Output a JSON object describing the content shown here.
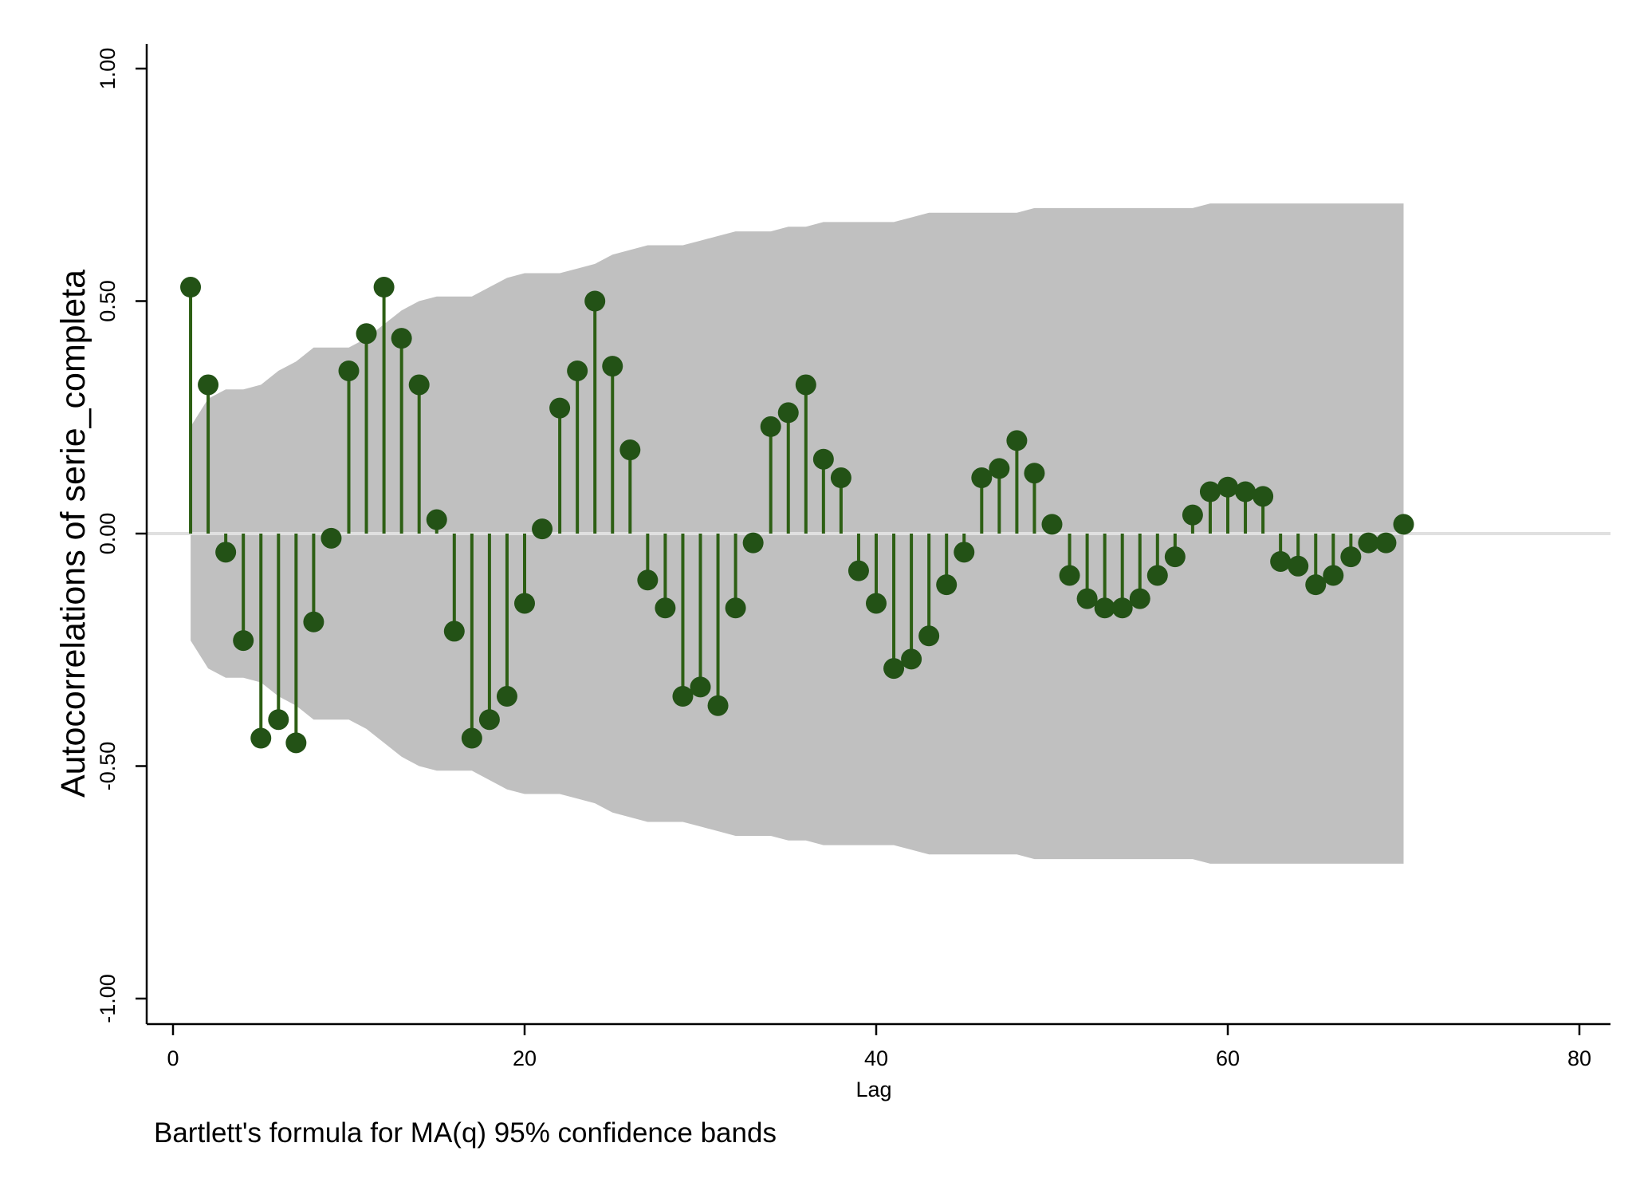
{
  "chart_data": {
    "type": "stem",
    "title": "",
    "xlabel": "Lag",
    "ylabel": "Autocorrelations of serie_completa",
    "note": "Bartlett's formula for MA(q) 95% confidence bands",
    "xlim": [
      0,
      80
    ],
    "ylim": [
      -1.0,
      1.0
    ],
    "x_ticks": [
      0,
      20,
      40,
      60,
      80
    ],
    "x_tick_labels": [
      "0",
      "20",
      "40",
      "60",
      "80"
    ],
    "y_ticks": [
      -1.0,
      -0.5,
      0.0,
      0.5,
      1.0
    ],
    "y_tick_labels": [
      "-1.00",
      "-0.50",
      "0.00",
      "0.50",
      "1.00"
    ],
    "grid": false,
    "legend": "none",
    "colors": {
      "stem": "#2d5f14",
      "marker": "#235216",
      "band": "#c0c0c0",
      "zero_line": "#e0e0e0",
      "axis": "#000000"
    },
    "lags": [
      1,
      2,
      3,
      4,
      5,
      6,
      7,
      8,
      9,
      10,
      11,
      12,
      13,
      14,
      15,
      16,
      17,
      18,
      19,
      20,
      21,
      22,
      23,
      24,
      25,
      26,
      27,
      28,
      29,
      30,
      31,
      32,
      33,
      34,
      35,
      36,
      37,
      38,
      39,
      40,
      41,
      42,
      43,
      44,
      45,
      46,
      47,
      48,
      49,
      50,
      51,
      52,
      53,
      54,
      55,
      56,
      57,
      58,
      59,
      60,
      61,
      62,
      63,
      64,
      65,
      66,
      67,
      68,
      69,
      70
    ],
    "acf": [
      0.53,
      0.32,
      -0.04,
      -0.23,
      -0.44,
      -0.4,
      -0.45,
      -0.19,
      -0.01,
      0.35,
      0.43,
      0.53,
      0.42,
      0.32,
      0.03,
      -0.21,
      -0.44,
      -0.4,
      -0.35,
      -0.15,
      0.01,
      0.27,
      0.35,
      0.5,
      0.36,
      0.18,
      -0.1,
      -0.16,
      -0.35,
      -0.33,
      -0.37,
      -0.16,
      -0.02,
      0.23,
      0.26,
      0.32,
      0.16,
      0.12,
      -0.08,
      -0.15,
      -0.29,
      -0.27,
      -0.22,
      -0.11,
      -0.04,
      0.12,
      0.14,
      0.2,
      0.13,
      0.02,
      -0.09,
      -0.14,
      -0.16,
      -0.16,
      -0.14,
      -0.09,
      -0.05,
      0.04,
      0.09,
      0.1,
      0.09,
      0.08,
      -0.06,
      -0.07,
      -0.11,
      -0.09,
      -0.05,
      -0.02,
      -0.02,
      0.02
    ],
    "conf_band": [
      0.23,
      0.29,
      0.31,
      0.31,
      0.32,
      0.35,
      0.37,
      0.4,
      0.4,
      0.4,
      0.42,
      0.45,
      0.48,
      0.5,
      0.51,
      0.51,
      0.51,
      0.53,
      0.55,
      0.56,
      0.56,
      0.56,
      0.57,
      0.58,
      0.6,
      0.61,
      0.62,
      0.62,
      0.62,
      0.63,
      0.64,
      0.65,
      0.65,
      0.65,
      0.66,
      0.66,
      0.67,
      0.67,
      0.67,
      0.67,
      0.67,
      0.68,
      0.69,
      0.69,
      0.69,
      0.69,
      0.69,
      0.69,
      0.7,
      0.7,
      0.7,
      0.7,
      0.7,
      0.7,
      0.7,
      0.7,
      0.7,
      0.7,
      0.71,
      0.71,
      0.71,
      0.71,
      0.71,
      0.71,
      0.71,
      0.71,
      0.71,
      0.71,
      0.71,
      0.71
    ]
  }
}
